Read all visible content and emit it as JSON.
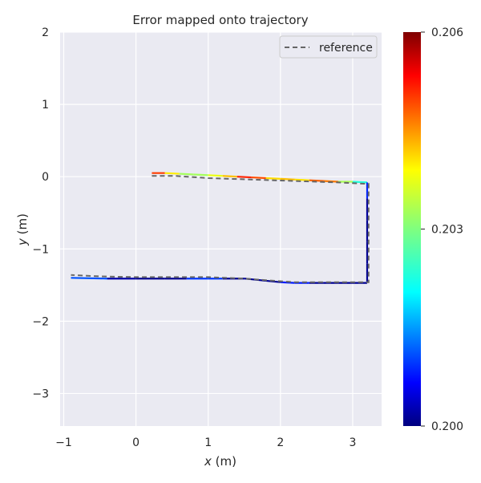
{
  "chart_data": {
    "type": "line",
    "title": "Error mapped onto trajectory",
    "xlabel": "x (m)",
    "xlabel_var": "x",
    "xlabel_unit": " (m)",
    "ylabel": "y (m)",
    "ylabel_var": "y",
    "ylabel_unit": " (m)",
    "xlim": [
      -1.05,
      3.4
    ],
    "ylim": [
      -3.45,
      2.0
    ],
    "xticks": [
      -1,
      0,
      1,
      2,
      3
    ],
    "xtick_labels": [
      "−1",
      "0",
      "1",
      "2",
      "3"
    ],
    "yticks": [
      2,
      1,
      0,
      -1,
      -2,
      -3
    ],
    "ytick_labels": [
      "2",
      "1",
      "0",
      "−1",
      "−2",
      "−3"
    ],
    "grid": true,
    "legend": {
      "position": "top-right",
      "entries": [
        "reference"
      ]
    },
    "reference": {
      "name": "reference",
      "x": [
        0.22,
        0.55,
        1.0,
        1.6,
        2.2,
        2.8,
        3.22,
        3.22,
        3.22,
        3.0,
        2.6,
        2.2,
        1.9,
        1.5,
        1.0,
        0.5,
        0.0,
        -0.5,
        -0.9
      ],
      "y": [
        0.01,
        0.01,
        -0.02,
        -0.04,
        -0.06,
        -0.08,
        -0.1,
        -0.6,
        -1.46,
        -1.46,
        -1.46,
        -1.46,
        -1.44,
        -1.41,
        -1.39,
        -1.39,
        -1.39,
        -1.38,
        -1.36
      ]
    },
    "trajectory": {
      "x": [
        0.22,
        0.4,
        0.6,
        0.8,
        1.0,
        1.2,
        1.4,
        1.6,
        1.8,
        2.0,
        2.2,
        2.4,
        2.6,
        2.8,
        3.0,
        3.2,
        3.2,
        3.2,
        3.2,
        3.2,
        3.2,
        3.0,
        2.8,
        2.6,
        2.4,
        2.2,
        2.0,
        1.8,
        1.5,
        1.2,
        1.0,
        0.7,
        0.4,
        0.0,
        -0.4,
        -0.9
      ],
      "y": [
        0.05,
        0.05,
        0.04,
        0.03,
        0.02,
        0.01,
        0.0,
        -0.01,
        -0.02,
        -0.03,
        -0.04,
        -0.05,
        -0.06,
        -0.07,
        -0.07,
        -0.08,
        -0.3,
        -0.6,
        -0.9,
        -1.2,
        -1.47,
        -1.47,
        -1.47,
        -1.47,
        -1.47,
        -1.47,
        -1.46,
        -1.44,
        -1.41,
        -1.41,
        -1.41,
        -1.41,
        -1.41,
        -1.41,
        -1.41,
        -1.4
      ],
      "error": [
        0.2055,
        0.2045,
        0.2035,
        0.203,
        0.2035,
        0.204,
        0.2045,
        0.2058,
        0.204,
        0.2042,
        0.2043,
        0.2038,
        0.2058,
        0.2035,
        0.2031,
        0.2015,
        0.2002,
        0.2001,
        0.2001,
        0.2001,
        0.2001,
        0.2001,
        0.2001,
        0.2001,
        0.2001,
        0.2015,
        0.2001,
        0.2001,
        0.2001,
        0.2001,
        0.2018,
        0.2001,
        0.2001,
        0.2001,
        0.2003,
        0.2019
      ]
    },
    "colorbar": {
      "colormap": "jet",
      "range": [
        0.2,
        0.206
      ],
      "ticks": [
        0.206,
        0.203,
        0.2
      ],
      "tick_labels": [
        "0.206",
        "0.203",
        "0.200"
      ]
    }
  },
  "colors": {
    "plot_bg": "#eaeaf2",
    "grid": "#ffffff",
    "reference": "#666666",
    "text": "#262626"
  }
}
